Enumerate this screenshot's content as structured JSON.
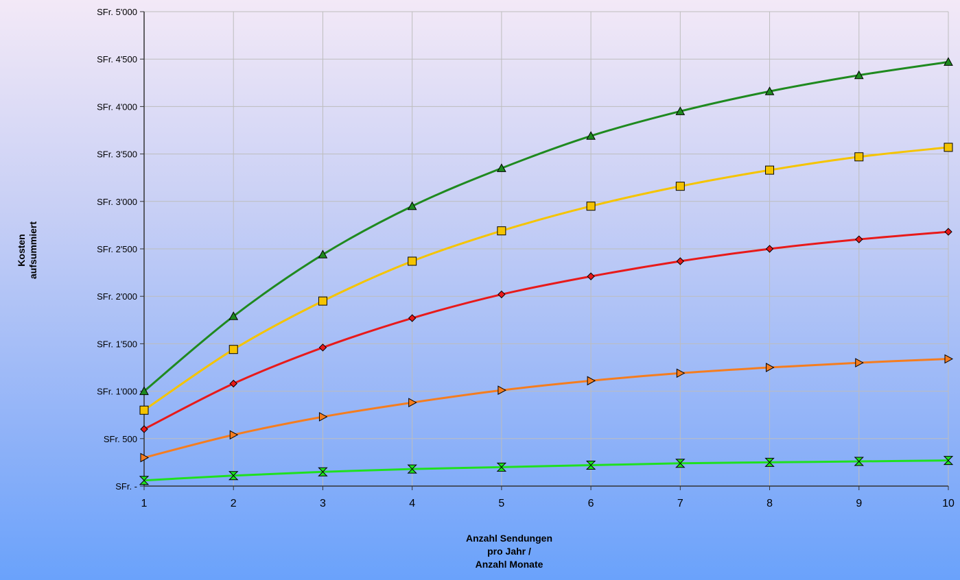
{
  "chart_data": {
    "type": "line",
    "title": "",
    "ylabel": [
      "Kosten",
      "aufsummiert"
    ],
    "xlabel": [
      "Anzahl Sendungen",
      "pro Jahr /",
      "Anzahl Monate"
    ],
    "x": [
      1,
      2,
      3,
      4,
      5,
      6,
      7,
      8,
      9,
      10
    ],
    "xlim": [
      1,
      10
    ],
    "ylim": [
      0,
      5000
    ],
    "yticks": [
      0,
      500,
      1000,
      1500,
      2000,
      2500,
      3000,
      3500,
      4000,
      4500,
      5000
    ],
    "ytick_labels": [
      "SFr. -",
      "SFr. 500",
      "SFr. 1'000",
      "SFr. 1'500",
      "SFr. 2'000",
      "SFr. 2'500",
      "SFr. 3'000",
      "SFr. 3'500",
      "SFr. 4'000",
      "SFr. 4'500",
      "SFr. 5'000"
    ],
    "grid": true,
    "legend": "none",
    "series": [
      {
        "color": "#1f8a1f",
        "marker": "triangle-up",
        "values": [
          1000,
          1790,
          2440,
          2950,
          3350,
          3690,
          3950,
          4160,
          4330,
          4470
        ]
      },
      {
        "color": "#f5c400",
        "marker": "square",
        "values": [
          800,
          1440,
          1950,
          2370,
          2690,
          2950,
          3160,
          3330,
          3470,
          3570
        ]
      },
      {
        "color": "#e81a1a",
        "marker": "diamond",
        "values": [
          600,
          1080,
          1460,
          1770,
          2020,
          2210,
          2370,
          2500,
          2600,
          2680
        ]
      },
      {
        "color": "#f57d1f",
        "marker": "triangle-right",
        "values": [
          300,
          540,
          730,
          880,
          1010,
          1110,
          1190,
          1250,
          1300,
          1340
        ]
      },
      {
        "color": "#1fe01f",
        "marker": "hourglass",
        "values": [
          60,
          110,
          150,
          180,
          200,
          220,
          240,
          250,
          260,
          270
        ]
      }
    ]
  }
}
